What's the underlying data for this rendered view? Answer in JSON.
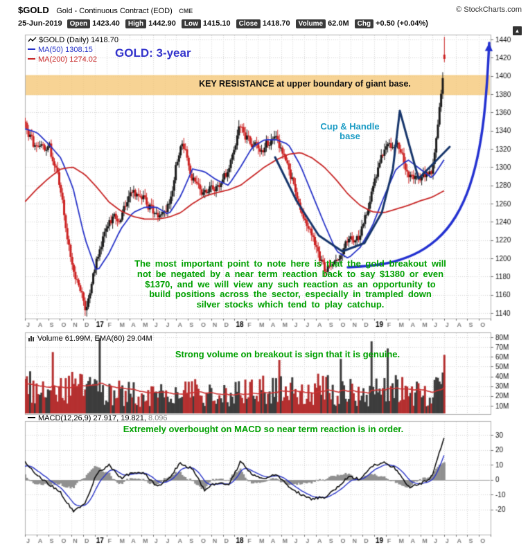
{
  "header": {
    "symbol": "$GOLD",
    "name": "Gold - Continuous Contract (EOD)",
    "exchange": "CME",
    "copyright": "© StockCharts.com",
    "date": "25-Jun-2019",
    "fields": [
      {
        "label": "Open",
        "value": "1423.40"
      },
      {
        "label": "High",
        "value": "1442.90"
      },
      {
        "label": "Low",
        "value": "1415.10"
      },
      {
        "label": "Close",
        "value": "1418.70"
      },
      {
        "label": "Volume",
        "value": "62.0M"
      },
      {
        "label": "Chg",
        "value": "+0.50 (+0.04%)"
      }
    ]
  },
  "icons": {
    "up_arrow": "▲"
  },
  "panels": {
    "price": {
      "legend_main": "$GOLD (Daily) 1418.70",
      "legend_ma50": "MA(50) 1308.15",
      "legend_ma200": "MA(200) 1274.02",
      "title_note": "GOLD: 3-year",
      "resistance_text": "KEY RESISTANCE at upper boundary of giant base.",
      "cup_label_line1": "Cup & Handle",
      "cup_label_line2": "base",
      "commentary": [
        "The most important point to note here is that the gold breakout will",
        "not be negated by a near term reaction back to say $1380 or even",
        "$1370, and we will view any such reaction as an opportunity to",
        "build positions across the sector, especially in trampled down",
        "silver stocks which tend to play catchup."
      ]
    },
    "volume": {
      "legend": "Volume 61.99M, EMA(60) 29.04M",
      "annotation": "Strong volume on breakout is sign that it is genuine."
    },
    "macd": {
      "legend_name": "MACD(12,26,9)",
      "legend_values": "27.917, 19.821,",
      "legend_value3": "8.096",
      "annotation": "Extremely overbought on MACD so near term reaction is in order."
    }
  },
  "colors": {
    "up": "#1a1a1a",
    "down": "#cc2222",
    "ma50": "#2632c8",
    "ma200": "#c82626",
    "volume_up": "#3d3d3d",
    "volume_down": "#b53030",
    "volume_ema": "#cc3333",
    "macd_line": "#111111",
    "macd_signal": "#2a35c8",
    "hist_gray": "#909090",
    "band_orange": "#f5c879",
    "navy_drawing": "#16356b",
    "arrow_blue": "#2331d1",
    "green_annotation": "#00a000",
    "teal_annotation": "#1a9bc4",
    "title_blue": "#3333cc"
  },
  "chart_data": {
    "type": "candlestick",
    "symbol": "$GOLD",
    "period": "Daily, Jul 2016 - Jun 2019",
    "x_axis": {
      "slot_labels": [
        "J",
        "A",
        "S",
        "O",
        "N",
        "D",
        "17",
        "F",
        "M",
        "A",
        "M",
        "J",
        "J",
        "A",
        "S",
        "O",
        "N",
        "D",
        "18",
        "F",
        "M",
        "A",
        "M",
        "J",
        "J",
        "A",
        "S",
        "O",
        "N",
        "D",
        "19",
        "F",
        "M",
        "A",
        "M",
        "J",
        "J",
        "A",
        "S",
        "O"
      ]
    },
    "price_panel": {
      "ylim": [
        1134,
        1446
      ],
      "yticks": [
        1140,
        1160,
        1180,
        1200,
        1220,
        1240,
        1260,
        1280,
        1300,
        1320,
        1340,
        1360,
        1380,
        1400,
        1420,
        1440
      ],
      "monthly_close": [
        1350,
        1315,
        1322,
        1272,
        1185,
        1145,
        1205,
        1245,
        1248,
        1268,
        1265,
        1245,
        1262,
        1330,
        1290,
        1272,
        1278,
        1295,
        1345,
        1322,
        1324,
        1330,
        1302,
        1252,
        1222,
        1185,
        1195,
        1222,
        1222,
        1278,
        1320,
        1325,
        1295,
        1285,
        1300,
        1418
      ],
      "ma50_monthly": [
        1342,
        1338,
        1325,
        1310,
        1278,
        1222,
        1185,
        1205,
        1232,
        1250,
        1256,
        1256,
        1248,
        1268,
        1298,
        1295,
        1286,
        1280,
        1300,
        1322,
        1330,
        1330,
        1325,
        1302,
        1270,
        1238,
        1208,
        1200,
        1212,
        1235,
        1268,
        1298,
        1308,
        1298,
        1288,
        1308
      ],
      "ma200_monthly": [
        1262,
        1276,
        1288,
        1298,
        1300,
        1292,
        1278,
        1262,
        1252,
        1246,
        1243,
        1243,
        1245,
        1250,
        1260,
        1268,
        1272,
        1275,
        1280,
        1290,
        1300,
        1308,
        1314,
        1316,
        1310,
        1300,
        1286,
        1270,
        1258,
        1251,
        1250,
        1254,
        1258,
        1263,
        1267,
        1274
      ],
      "last_bar": {
        "open": 1423.4,
        "high": 1442.9,
        "low": 1415.1,
        "close": 1418.7
      },
      "resistance_zone": [
        1379,
        1401
      ]
    },
    "volume_panel": {
      "yticks": [
        10,
        20,
        30,
        40,
        50,
        60,
        70,
        80
      ],
      "unit": "M",
      "monthly_avg_M": [
        34,
        30,
        28,
        29,
        34,
        30,
        26,
        25,
        28,
        23,
        22,
        25,
        20,
        26,
        28,
        25,
        24,
        22,
        28,
        34,
        30,
        28,
        30,
        32,
        30,
        32,
        28,
        30,
        25,
        27,
        28,
        30,
        27,
        25,
        24,
        38
      ],
      "last_volume_M": 62.0,
      "ema60_M": 29.04
    },
    "macd_panel": {
      "yticks": [
        -20,
        -10,
        0,
        10,
        20,
        30
      ],
      "monthly_macd": [
        12,
        3,
        -3,
        -9,
        -21,
        -17,
        4,
        10,
        1,
        5,
        4,
        -5,
        1,
        11,
        7,
        -7,
        -2,
        -4,
        12,
        3,
        1,
        3,
        -4,
        -10,
        -13,
        -12,
        -6,
        2,
        0,
        9,
        12,
        7,
        -5,
        -3,
        2,
        28
      ],
      "last": {
        "macd": 27.917,
        "signal": 19.821,
        "hist": 8.096
      }
    },
    "annotations": {
      "cup_handle_points": [
        [
          397,
          227
        ],
        [
          428,
          290
        ],
        [
          460,
          340
        ],
        [
          494,
          363
        ],
        [
          526,
          351
        ],
        [
          551,
          307
        ],
        [
          567,
          244
        ],
        [
          577,
          160
        ],
        [
          604,
          258
        ],
        [
          649,
          212
        ]
      ],
      "arrow_points": [
        [
          502,
          386
        ],
        [
          540,
          384
        ],
        [
          578,
          376
        ],
        [
          614,
          360
        ],
        [
          646,
          332
        ],
        [
          670,
          292
        ],
        [
          686,
          244
        ],
        [
          697,
          186
        ],
        [
          703,
          120
        ],
        [
          706,
          62
        ]
      ]
    }
  }
}
